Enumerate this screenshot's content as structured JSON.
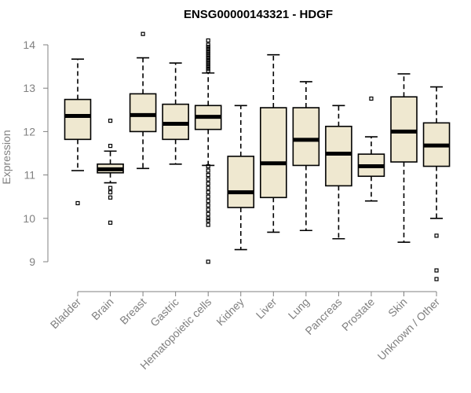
{
  "chart_data": {
    "type": "boxplot",
    "title": "ENSG00000143321 - HDGF",
    "xlabel": "",
    "ylabel": "Expression",
    "ylim": [
      8.5,
      14.3
    ],
    "yticks": [
      9,
      10,
      11,
      12,
      13,
      14
    ],
    "colors": {
      "box_fill": "#efe8d0",
      "box_stroke": "#000000",
      "axis": "#808080",
      "label": "#808080"
    },
    "categories": [
      "Bladder",
      "Brain",
      "Breast",
      "Gastric",
      "Hematopoietic cells",
      "Kidney",
      "Liver",
      "Lung",
      "Pancreas",
      "Prostate",
      "Skin",
      "Unknown / Other"
    ],
    "boxes": [
      {
        "category": "Bladder",
        "lower_whisker": 11.1,
        "q1": 11.82,
        "median": 12.36,
        "q3": 12.74,
        "upper_whisker": 13.67,
        "outliers": [
          10.35
        ]
      },
      {
        "category": "Brain",
        "lower_whisker": 10.82,
        "q1": 11.05,
        "median": 11.13,
        "q3": 11.25,
        "upper_whisker": 11.55,
        "outliers": [
          12.25,
          11.67,
          10.7,
          10.6,
          10.48,
          9.9
        ]
      },
      {
        "category": "Breast",
        "lower_whisker": 11.15,
        "q1": 12.0,
        "median": 12.38,
        "q3": 12.87,
        "upper_whisker": 13.7,
        "outliers": [
          14.25
        ]
      },
      {
        "category": "Gastric",
        "lower_whisker": 11.25,
        "q1": 11.82,
        "median": 12.18,
        "q3": 12.63,
        "upper_whisker": 13.58,
        "outliers": []
      },
      {
        "category": "Hematopoietic cells",
        "lower_whisker": 11.22,
        "q1": 12.05,
        "median": 12.34,
        "q3": 12.6,
        "upper_whisker": 13.35,
        "outliers": [
          14.1,
          14.0,
          13.95,
          13.9,
          13.85,
          13.8,
          13.75,
          13.7,
          13.65,
          13.6,
          13.55,
          13.5,
          13.45,
          13.4,
          11.2,
          11.1,
          11.0,
          10.9,
          10.8,
          10.7,
          10.6,
          10.5,
          10.4,
          10.3,
          10.2,
          10.1,
          10.0,
          9.95,
          9.85,
          9.0
        ]
      },
      {
        "category": "Kidney",
        "lower_whisker": 9.28,
        "q1": 10.25,
        "median": 10.6,
        "q3": 11.43,
        "upper_whisker": 12.6,
        "outliers": []
      },
      {
        "category": "Liver",
        "lower_whisker": 9.68,
        "q1": 10.48,
        "median": 11.27,
        "q3": 12.55,
        "upper_whisker": 13.77,
        "outliers": []
      },
      {
        "category": "Lung",
        "lower_whisker": 9.72,
        "q1": 11.22,
        "median": 11.81,
        "q3": 12.55,
        "upper_whisker": 13.15,
        "outliers": []
      },
      {
        "category": "Pancreas",
        "lower_whisker": 9.53,
        "q1": 10.75,
        "median": 11.49,
        "q3": 12.12,
        "upper_whisker": 12.6,
        "outliers": []
      },
      {
        "category": "Prostate",
        "lower_whisker": 10.4,
        "q1": 10.97,
        "median": 11.2,
        "q3": 11.48,
        "upper_whisker": 11.88,
        "outliers": [
          12.76
        ]
      },
      {
        "category": "Skin",
        "lower_whisker": 9.45,
        "q1": 11.3,
        "median": 12.0,
        "q3": 12.8,
        "upper_whisker": 13.33,
        "outliers": []
      },
      {
        "category": "Unknown / Other",
        "lower_whisker": 10.0,
        "q1": 11.2,
        "median": 11.68,
        "q3": 12.2,
        "upper_whisker": 13.03,
        "outliers": [
          9.6,
          8.8,
          8.6
        ]
      }
    ]
  }
}
